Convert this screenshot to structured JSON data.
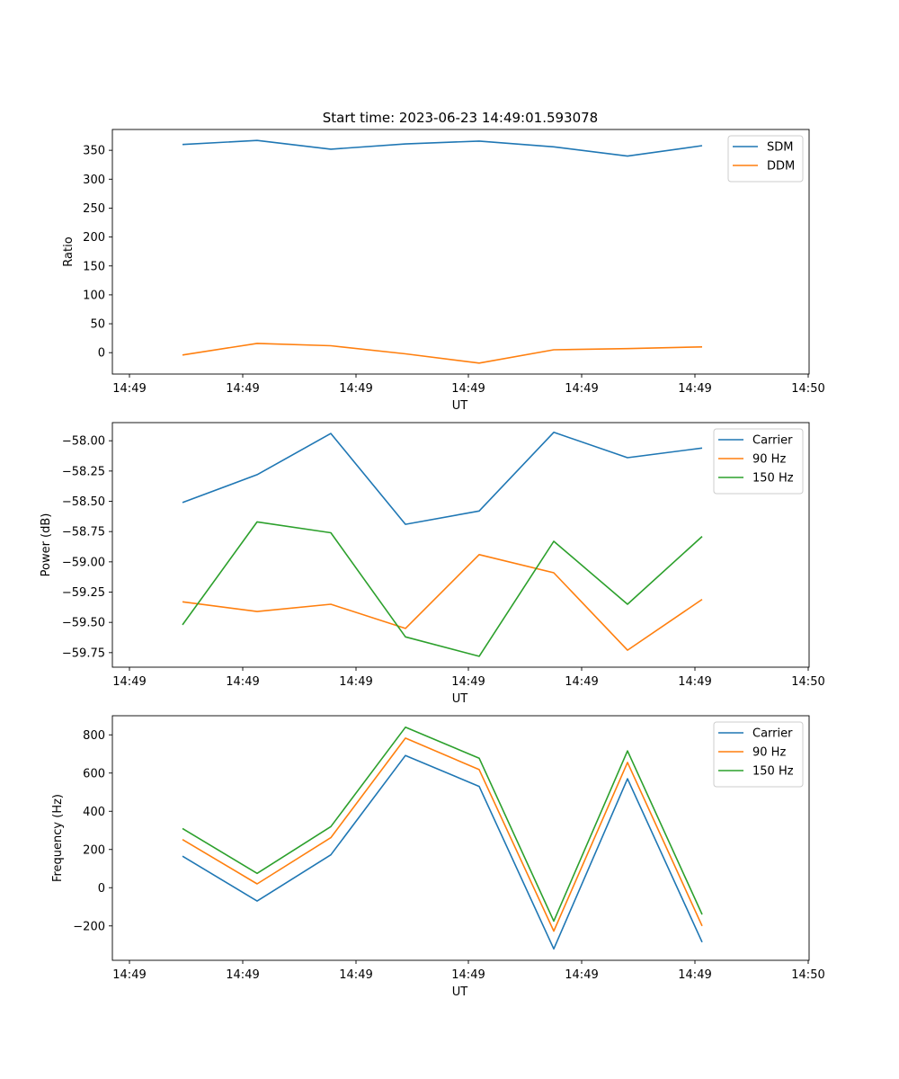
{
  "title": "Start time: 2023-06-23 14:49:01.593078",
  "chart_data": [
    {
      "type": "line",
      "ylabel": "Ratio",
      "xlabel": "UT",
      "x_tick_labels": [
        "14:49",
        "14:49",
        "14:49",
        "14:49",
        "14:49",
        "14:49",
        "14:49"
      ],
      "x_last_tick_label": "14:50",
      "y_ticks": [
        0,
        50,
        100,
        150,
        200,
        250,
        300,
        350
      ],
      "y_tick_labels": [
        "0",
        "50",
        "100",
        "150",
        "200",
        "250",
        "300",
        "350"
      ],
      "ylim": [
        -37,
        386
      ],
      "legend_position": "top-right",
      "series": [
        {
          "name": "SDM",
          "color": "#1f77b4",
          "values": [
            360,
            367,
            352,
            361,
            366,
            356,
            340,
            358
          ]
        },
        {
          "name": "DDM",
          "color": "#ff7f0e",
          "values": [
            -4,
            16,
            12,
            -2,
            -18,
            5,
            7,
            10
          ]
        }
      ]
    },
    {
      "type": "line",
      "ylabel": "Power (dB)",
      "xlabel": "UT",
      "x_tick_labels": [
        "14:49",
        "14:49",
        "14:49",
        "14:49",
        "14:49",
        "14:49",
        "14:49"
      ],
      "x_last_tick_label": "14:50",
      "y_ticks": [
        -59.75,
        -59.5,
        -59.25,
        -59.0,
        -58.75,
        -58.5,
        -58.25,
        -58.0
      ],
      "y_tick_labels": [
        "−59.75",
        "−59.50",
        "−59.25",
        "−59.00",
        "−58.75",
        "−58.50",
        "−58.25",
        "−58.00"
      ],
      "ylim": [
        -59.87,
        -57.85
      ],
      "legend_position": "top-right",
      "series": [
        {
          "name": "Carrier",
          "color": "#1f77b4",
          "values": [
            -58.51,
            -58.28,
            -57.94,
            -58.69,
            -58.58,
            -57.93,
            -58.14,
            -58.06
          ]
        },
        {
          "name": "90 Hz",
          "color": "#ff7f0e",
          "values": [
            -59.33,
            -59.41,
            -59.35,
            -59.55,
            -58.94,
            -59.09,
            -59.73,
            -59.31
          ]
        },
        {
          "name": "150 Hz",
          "color": "#2ca02c",
          "values": [
            -59.52,
            -58.67,
            -58.76,
            -59.62,
            -59.78,
            -58.83,
            -59.35,
            -58.79
          ]
        }
      ]
    },
    {
      "type": "line",
      "ylabel": "Frequency (Hz)",
      "xlabel": "UT",
      "x_tick_labels": [
        "14:49",
        "14:49",
        "14:49",
        "14:49",
        "14:49",
        "14:49",
        "14:49"
      ],
      "x_last_tick_label": "14:50",
      "y_ticks": [
        -200,
        0,
        200,
        400,
        600,
        800
      ],
      "y_tick_labels": [
        "−200",
        "0",
        "200",
        "400",
        "600",
        "800"
      ],
      "ylim": [
        -380,
        900
      ],
      "legend_position": "top-right",
      "series": [
        {
          "name": "Carrier",
          "color": "#1f77b4",
          "values": [
            165,
            -70,
            172,
            692,
            530,
            -320,
            570,
            -285
          ]
        },
        {
          "name": "90 Hz",
          "color": "#ff7f0e",
          "values": [
            252,
            20,
            262,
            783,
            618,
            -227,
            656,
            -200
          ]
        },
        {
          "name": "150 Hz",
          "color": "#2ca02c",
          "values": [
            310,
            75,
            320,
            840,
            678,
            -175,
            716,
            -140
          ]
        }
      ]
    }
  ]
}
